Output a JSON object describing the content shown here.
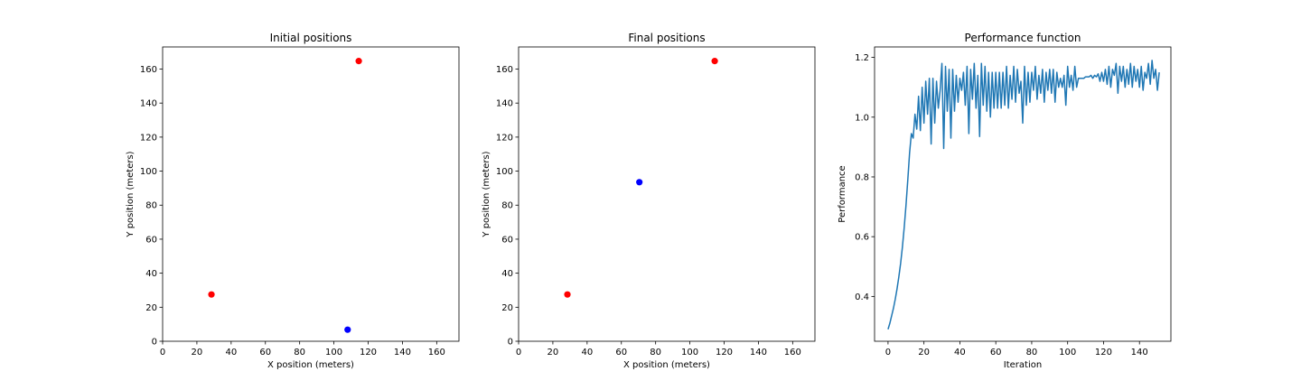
{
  "chart_data": [
    {
      "type": "scatter",
      "title": "Initial positions",
      "xlabel": "X position (meters)",
      "ylabel": "Y position (meters)",
      "xlim": [
        0,
        173
      ],
      "ylim": [
        0,
        173
      ],
      "xticks": [
        0,
        20,
        40,
        60,
        80,
        100,
        120,
        140,
        160
      ],
      "yticks": [
        0,
        20,
        40,
        60,
        80,
        100,
        120,
        140,
        160
      ],
      "grid": false,
      "points": [
        {
          "x": 28.5,
          "y": 27.5,
          "color": "#ff0000"
        },
        {
          "x": 114.5,
          "y": 164.7,
          "color": "#ff0000"
        },
        {
          "x": 108,
          "y": 6.8,
          "color": "#0000ff"
        }
      ]
    },
    {
      "type": "scatter",
      "title": "Final positions",
      "xlabel": "X position (meters)",
      "ylabel": "Y position (meters)",
      "xlim": [
        0,
        173
      ],
      "ylim": [
        0,
        173
      ],
      "xticks": [
        0,
        20,
        40,
        60,
        80,
        100,
        120,
        140,
        160
      ],
      "yticks": [
        0,
        20,
        40,
        60,
        80,
        100,
        120,
        140,
        160
      ],
      "grid": false,
      "points": [
        {
          "x": 28.5,
          "y": 27.5,
          "color": "#ff0000"
        },
        {
          "x": 114.5,
          "y": 164.7,
          "color": "#ff0000"
        },
        {
          "x": 70.5,
          "y": 93.5,
          "color": "#0000ff"
        }
      ]
    },
    {
      "type": "line",
      "title": "Performance function",
      "xlabel": "Iteration",
      "ylabel": "Performance",
      "xlim": [
        -7.5,
        157.5
      ],
      "ylim": [
        0.25,
        1.235
      ],
      "xticks": [
        0,
        20,
        40,
        60,
        80,
        100,
        120,
        140
      ],
      "yticks": [
        0.4,
        0.6,
        0.8,
        1.0,
        1.2
      ],
      "ytick_labels": [
        "0.4",
        "0.6",
        "0.8",
        "1.0",
        "1.2"
      ],
      "grid": false,
      "series": [
        {
          "color": "#1f77b4",
          "values": [
            0.29,
            0.31,
            0.335,
            0.36,
            0.39,
            0.425,
            0.465,
            0.51,
            0.565,
            0.63,
            0.705,
            0.79,
            0.88,
            0.945,
            0.93,
            1.01,
            0.96,
            1.07,
            0.955,
            1.1,
            0.98,
            1.12,
            1.01,
            1.13,
            0.91,
            1.13,
            0.98,
            1.12,
            1.03,
            1.09,
            1.18,
            0.895,
            1.17,
            1.02,
            1.16,
            0.93,
            1.16,
            1.02,
            1.14,
            1.05,
            1.13,
            1.09,
            1.15,
            1.04,
            1.17,
            0.945,
            1.16,
            1.06,
            1.18,
            1.03,
            1.14,
            0.935,
            1.18,
            1.04,
            1.17,
            1.02,
            1.15,
            1.0,
            1.15,
            1.03,
            1.15,
            1.03,
            1.15,
            1.03,
            1.15,
            1.04,
            1.17,
            1.03,
            1.14,
            1.06,
            1.17,
            1.05,
            1.16,
            1.08,
            1.12,
            0.98,
            1.17,
            1.04,
            1.15,
            1.05,
            1.15,
            1.09,
            1.17,
            1.06,
            1.14,
            1.08,
            1.16,
            1.05,
            1.15,
            1.09,
            1.16,
            1.08,
            1.16,
            1.05,
            1.15,
            1.1,
            1.13,
            1.1,
            1.14,
            1.04,
            1.17,
            1.1,
            1.14,
            1.09,
            1.17,
            1.1,
            1.13,
            1.13,
            1.13,
            1.13,
            1.135,
            1.135,
            1.135,
            1.14,
            1.13,
            1.14,
            1.135,
            1.145,
            1.12,
            1.15,
            1.12,
            1.16,
            1.11,
            1.17,
            1.1,
            1.16,
            1.14,
            1.18,
            1.08,
            1.17,
            1.12,
            1.17,
            1.1,
            1.16,
            1.11,
            1.18,
            1.1,
            1.17,
            1.12,
            1.16,
            1.1,
            1.17,
            1.09,
            1.15,
            1.13,
            1.18,
            1.11,
            1.19,
            1.13,
            1.16,
            1.09,
            1.15
          ]
        }
      ]
    }
  ]
}
